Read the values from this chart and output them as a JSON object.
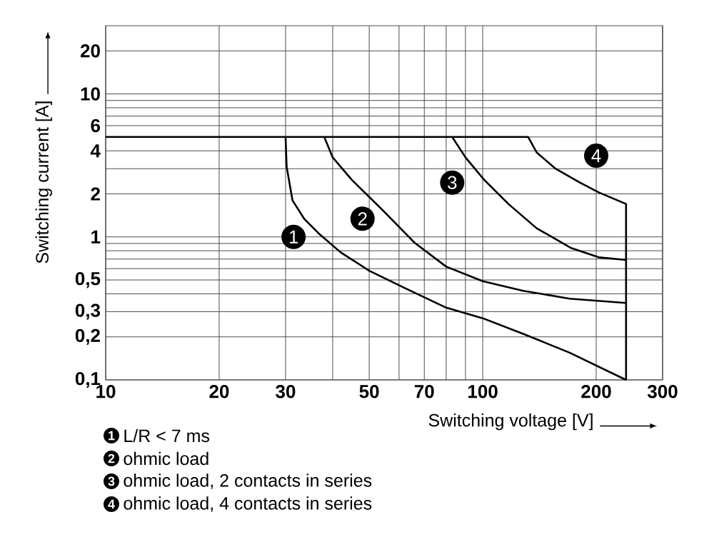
{
  "chart_data": {
    "type": "line",
    "xlabel": "Switching voltage [V]",
    "ylabel": "Switching current [A]",
    "log": "xy",
    "grid": true,
    "legend": "bottom",
    "marker": "none",
    "line_style": "solid",
    "xlim": [
      10,
      300
    ],
    "ylim": [
      0.1,
      30
    ],
    "xticks": [
      10,
      20,
      30,
      {
        "value": 40,
        "label": null
      },
      50,
      {
        "value": 60,
        "label": null
      },
      70,
      {
        "value": 80,
        "label": null
      },
      {
        "value": 90,
        "label": null
      },
      100,
      200,
      300
    ],
    "yticks": [
      {
        "value": 0.1,
        "label": "0,1"
      },
      {
        "value": 0.2,
        "label": "0,2"
      },
      {
        "value": 0.3,
        "label": "0,3"
      },
      {
        "value": 0.4,
        "label": null
      },
      {
        "value": 0.5,
        "label": "0,5"
      },
      {
        "value": 0.6,
        "label": null
      },
      {
        "value": 0.7,
        "label": null
      },
      {
        "value": 0.8,
        "label": null
      },
      {
        "value": 0.9,
        "label": null
      },
      1,
      2,
      {
        "value": 3,
        "label": null
      },
      4,
      {
        "value": 5,
        "label": null
      },
      6,
      {
        "value": 7,
        "label": null
      },
      {
        "value": 8,
        "label": null
      },
      {
        "value": 9,
        "label": null
      },
      10,
      20
    ],
    "series": [
      {
        "name": "L/R < 7 ms",
        "color": "#000000",
        "x": [
          30,
          30.2,
          31.3,
          33.6,
          36.7,
          42,
          50,
          62,
          80,
          100,
          128,
          170,
          240
        ],
        "values": [
          5,
          3.1,
          1.8,
          1.34,
          1.06,
          0.78,
          0.58,
          0.44,
          0.32,
          0.27,
          0.21,
          0.155,
          0.1
        ]
      },
      {
        "name": "ohmic load",
        "color": "#000000",
        "x": [
          38,
          40,
          45,
          54,
          66,
          80,
          100,
          128,
          170,
          240
        ],
        "values": [
          5,
          3.6,
          2.5,
          1.56,
          0.91,
          0.62,
          0.49,
          0.42,
          0.37,
          0.345
        ]
      },
      {
        "name": "ohmic load, 2 contacts in series",
        "color": "#000000",
        "x": [
          83,
          90,
          101,
          117,
          139,
          171,
          203,
          240
        ],
        "values": [
          5,
          3.6,
          2.5,
          1.7,
          1.15,
          0.84,
          0.72,
          0.69
        ]
      },
      {
        "name": "ohmic load, 4 contacts in series",
        "color": "#000000",
        "x": [
          10,
          132,
          139,
          156,
          181,
          203,
          240,
          240
        ],
        "values": [
          5,
          5,
          3.9,
          3.0,
          2.4,
          2.05,
          1.7,
          0.1
        ]
      }
    ],
    "annotations": [
      {
        "text": "1",
        "x": 31.5,
        "y": 1
      },
      {
        "text": "2",
        "x": 48,
        "y": 1.34
      },
      {
        "text": "3",
        "x": 83,
        "y": 2.4
      },
      {
        "text": "4",
        "x": 200,
        "y": 3.7
      }
    ]
  }
}
